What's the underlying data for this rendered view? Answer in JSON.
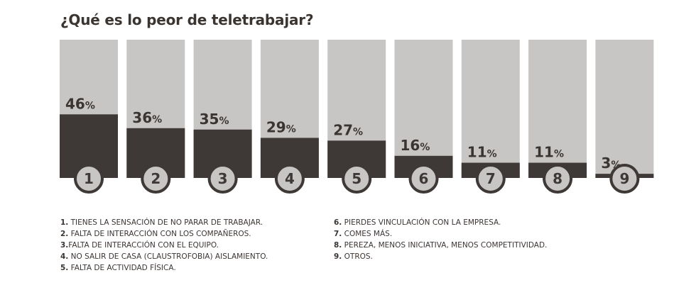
{
  "chart_data": {
    "type": "bar",
    "title": "¿Qué es lo peor de teletrabajar?",
    "categories": [
      "1",
      "2",
      "3",
      "4",
      "5",
      "6",
      "7",
      "8",
      "9"
    ],
    "values": [
      46,
      36,
      35,
      29,
      27,
      16,
      11,
      11,
      3
    ],
    "value_suffix": "%",
    "ylim": [
      0,
      100
    ],
    "xlabel": "",
    "ylabel": "",
    "colors": {
      "fill": "#3e3936",
      "track": "#c8c6c4",
      "badge": "#c8c6c4",
      "badge_text": "#3e3936",
      "text": "#3b3532"
    },
    "legend_left": [
      {
        "num": "1.",
        "text": "TIENES LA SENSACIÓN DE NO PARAR DE TRABAJAR."
      },
      {
        "num": "2.",
        "text": "FALTA DE INTERACCIÓN CON LOS COMPAÑEROS."
      },
      {
        "num": "3.",
        "text": "FALTA DE INTERACCIÓN CON EL EQUIPO."
      },
      {
        "num": "4.",
        "text": "NO SALIR DE CASA (CLAUSTROFOBIA) AISLAMIENTO."
      },
      {
        "num": "5.",
        "text": "FALTA DE ACTIVIDAD FÍSICA."
      }
    ],
    "legend_right": [
      {
        "num": "6.",
        "text": "PIERDES VINCULACIÓN CON LA EMPRESA."
      },
      {
        "num": "7.",
        "text": "COMES MÁS."
      },
      {
        "num": "8.",
        "text": "PEREZA, MENOS INICIATIVA, MENOS COMPETITIVIDAD."
      },
      {
        "num": "9.",
        "text": "OTROS."
      }
    ]
  }
}
